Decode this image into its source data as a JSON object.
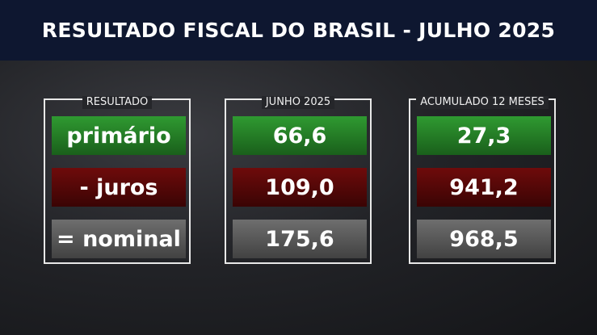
{
  "header": {
    "title": "RESULTADO FISCAL DO BRASIL - JULHO 2025"
  },
  "table": {
    "columns": [
      {
        "header": "RESULTADO",
        "cells": [
          "primário",
          "- juros",
          "= nominal"
        ]
      },
      {
        "header": "JUNHO 2025",
        "cells": [
          "66,6",
          "109,0",
          "175,6"
        ]
      },
      {
        "header": "ACUMULADO 12 MESES",
        "cells": [
          "27,3",
          "941,2",
          "968,5"
        ]
      }
    ]
  }
}
